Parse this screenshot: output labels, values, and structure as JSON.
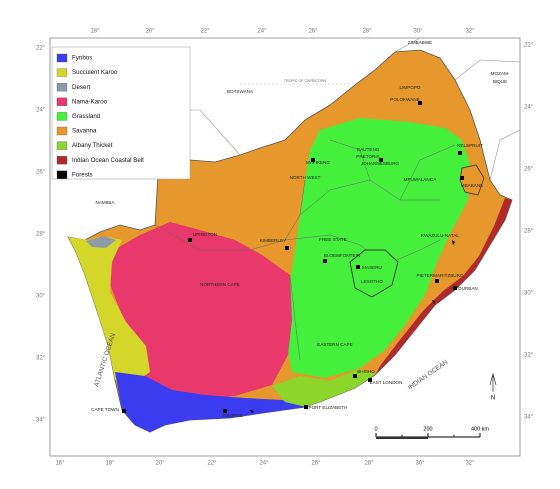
{
  "legend": {
    "items": [
      {
        "label": "Fynbos",
        "color": "#3b3bf0"
      },
      {
        "label": "Succulent Karoo",
        "color": "#d4d62a"
      },
      {
        "label": "Desert",
        "color": "#8e9ba6"
      },
      {
        "label": "Nama-Karoo",
        "color": "#e8386c"
      },
      {
        "label": "Grassland",
        "color": "#44f03c"
      },
      {
        "label": "Savanna",
        "color": "#e6982c"
      },
      {
        "label": "Albany Thicket",
        "color": "#8cd62c"
      },
      {
        "label": "Indian Ocean Coastal Belt",
        "color": "#b02a2c"
      },
      {
        "label": "Forests",
        "color": "#000000"
      }
    ]
  },
  "graticule": {
    "top": [
      "18°",
      "20°",
      "22°",
      "24°",
      "26°",
      "28°",
      "30°",
      "32°"
    ],
    "bottom": [
      "16°",
      "18°",
      "20°",
      "22°",
      "24°",
      "26°",
      "28°",
      "30°",
      "32°"
    ],
    "left": [
      "22°",
      "24°",
      "26°",
      "28°",
      "30°",
      "32°",
      "34°"
    ],
    "right": [
      "22°",
      "24°",
      "26°",
      "28°",
      "30°",
      "32°",
      "34°"
    ]
  },
  "countries": [
    "ZIMBABWE",
    "MOZAM-",
    "BIQUE",
    "BOTSWANA",
    "NAMIBIA",
    "LESOTHO"
  ],
  "tropic": "TROPIC OF CAPRICORN",
  "places": [
    "LIMPOPO",
    "POLOKWANE",
    "NELSPRUIT",
    "MBABANE",
    "GAUTENG",
    "PRETORIA",
    "JOHANNESBURG",
    "MAFIKENG",
    "NORTH WEST",
    "MPUMALANGA",
    "FREE STATE",
    "KIMBERLEY",
    "BLOEMFONTEIN",
    "MASERU",
    "KWAZULU-NATAL",
    "PIETERMARITZBURG",
    "DURBAN",
    "UPINGTON",
    "NORTHERN CAPE",
    "EASTERN CAPE",
    "BHISHO",
    "EAST LONDON",
    "PORT ELIZABETH",
    "GEORGE",
    "CAPE TOWN"
  ],
  "oceans": [
    "ATLANTIC OCEAN",
    "INDIAN OCEAN"
  ],
  "north": "N",
  "scale": [
    "0",
    "200",
    "400 km"
  ]
}
